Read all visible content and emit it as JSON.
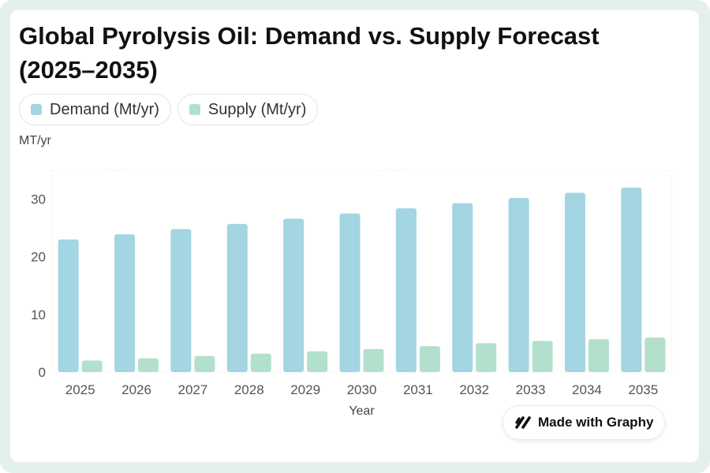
{
  "chart_data": {
    "type": "bar",
    "title": "Global Pyrolysis Oil: Demand vs. Supply Forecast (2025–2035)",
    "xlabel": "Year",
    "ylabel": "MT/yr",
    "ylim": [
      0,
      35
    ],
    "yticks": [
      0,
      10,
      20,
      30
    ],
    "grid": false,
    "legend_position": "top-left",
    "categories": [
      "2025",
      "2026",
      "2027",
      "2028",
      "2029",
      "2030",
      "2031",
      "2032",
      "2033",
      "2034",
      "2035"
    ],
    "series": [
      {
        "name": "Demand (Mt/yr)",
        "color": "#a3d5e2",
        "values": [
          23.0,
          23.9,
          24.8,
          25.7,
          26.6,
          27.5,
          28.4,
          29.3,
          30.2,
          31.1,
          32.0
        ]
      },
      {
        "name": "Supply (Mt/yr)",
        "color": "#b3e0cc",
        "values": [
          2.0,
          2.4,
          2.8,
          3.2,
          3.6,
          4.0,
          4.5,
          5.0,
          5.4,
          5.7,
          6.0
        ]
      }
    ]
  },
  "badge": {
    "label": "Made with Graphy",
    "icon": "graphy-logo-icon"
  },
  "colors": {
    "frame": "#e4f1ea",
    "axis_text": "#555555",
    "title": "#111111"
  }
}
